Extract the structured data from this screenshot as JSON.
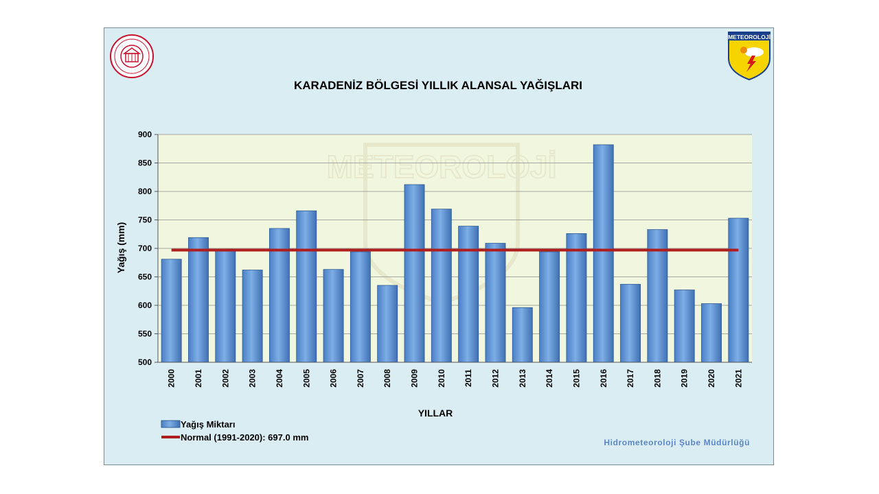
{
  "colors": {
    "plot_bg": "#f0f7de",
    "slide_bg": "#daedf3",
    "bar": "#5b8fd0",
    "bar_edge": "#2f5a93",
    "normal_line": "#b01d1d",
    "grid": "#8c8c8c",
    "credit": "#5b86c6"
  },
  "logos": {
    "left": "Ministry emblem seal",
    "right": "METEOROLOJİ",
    "watermark": "METEOROLOJİ"
  },
  "chart_data": {
    "type": "bar",
    "title": "KARADENİZ BÖLGESİ  YILLIK ALANSAL YAĞIŞLARI",
    "xlabel": "YILLAR",
    "ylabel": "Yağış (mm)",
    "ylim": [
      500,
      900
    ],
    "yticks": [
      500,
      550,
      600,
      650,
      700,
      750,
      800,
      850,
      900
    ],
    "grid": true,
    "legend_position": "bottom-left",
    "categories": [
      "2000",
      "2001",
      "2002",
      "2003",
      "2004",
      "2005",
      "2006",
      "2007",
      "2008",
      "2009",
      "2010",
      "2011",
      "2012",
      "2013",
      "2014",
      "2015",
      "2016",
      "2017",
      "2018",
      "2019",
      "2020",
      "2021"
    ],
    "series": [
      {
        "name": "Yağış Miktarı",
        "type": "bar",
        "values": [
          681,
          719,
          697,
          662,
          735,
          766,
          663,
          694,
          635,
          812,
          769,
          739,
          709,
          596,
          694,
          726,
          882,
          637,
          733,
          627,
          603,
          753
        ]
      },
      {
        "name": "Normal (1991-2020): 697.0 mm",
        "type": "line",
        "value": 697.0
      }
    ],
    "credit": "Hidrometeoroloji Şube Müdürlüğü"
  }
}
